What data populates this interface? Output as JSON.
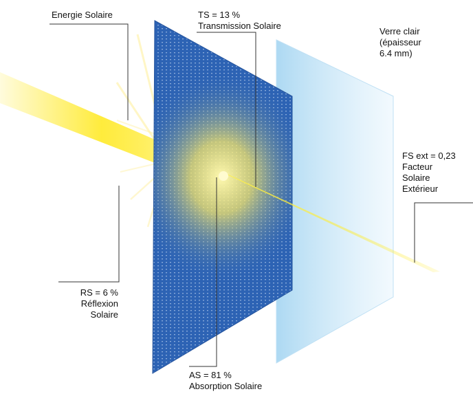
{
  "labels": {
    "energie": "Energie Solaire",
    "ts_value": "TS = 13 %",
    "ts_name": "Transmission Solaire",
    "verre_line1": "Verre clair",
    "verre_line2": "(épaisseur",
    "verre_line3": "6.4 mm)",
    "fs_value": "FS ext = 0,23",
    "fs_line2": "Facteur",
    "fs_line3": "Solaire",
    "fs_line4": "Extérieur",
    "rs_value": "RS = 6 %",
    "rs_line2": "Réflexion",
    "rs_line3": "Solaire",
    "as_value": "AS = 81 %",
    "as_name": "Absorption Solaire"
  },
  "colors": {
    "panel_blue": "#2d63b4",
    "glass": "#cfe9f8",
    "sun_yellow": "#ffe81a",
    "leader_line": "#333333"
  }
}
